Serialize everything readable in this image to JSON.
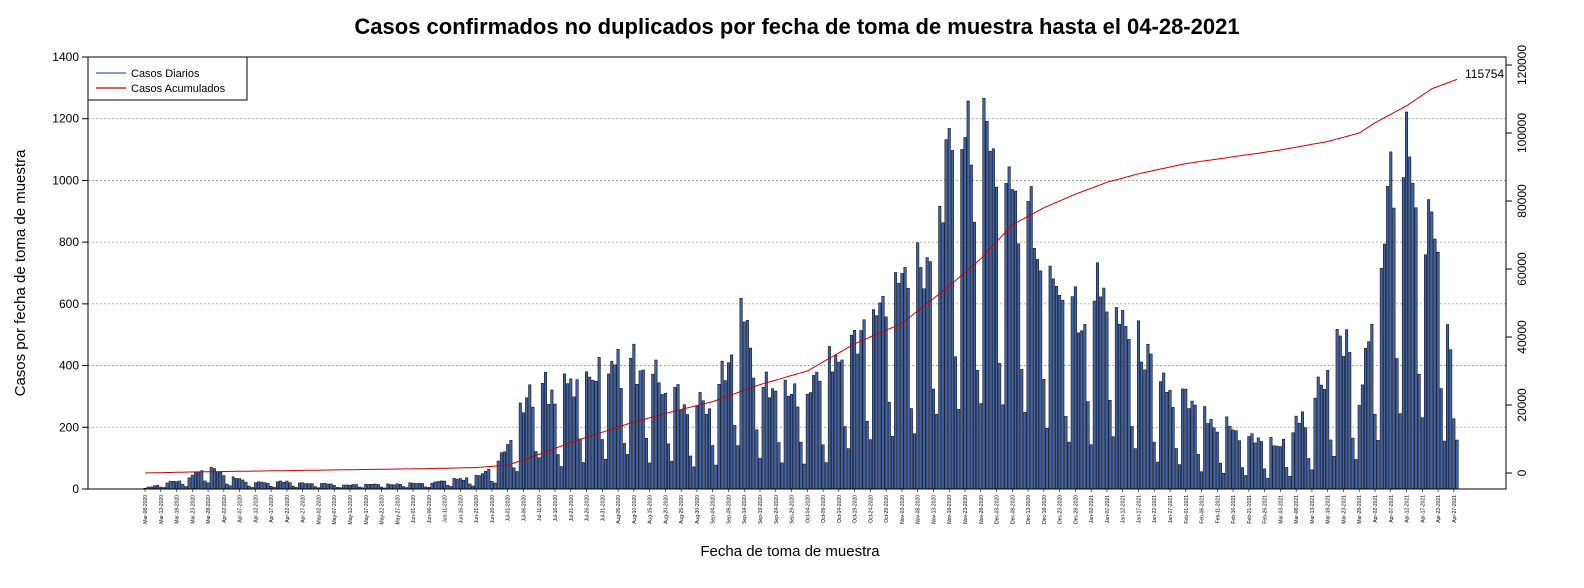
{
  "chart_data": {
    "type": "bar+line",
    "title": "Casos confirmados no duplicados por fecha de toma de muestra hasta el 04-28-2021",
    "xlabel": "Fecha de toma de muestra",
    "ylabel": "Casos por fecha de toma de muestra",
    "ylim_left": [
      0,
      1400
    ],
    "yticks_left": [
      "0",
      "200",
      "400",
      "600",
      "800",
      "1000",
      "1200",
      "1400"
    ],
    "ylim_right": [
      -4000,
      120000
    ],
    "yticks_right": [
      "0",
      "20000",
      "40000",
      "60000",
      "80000",
      "100000",
      "120000"
    ],
    "grid": "horizontal dotted",
    "legend_position": "top-left",
    "legend": [
      "Casos Diarios",
      "Casos Acumulados"
    ],
    "final_cumulative_label": "115754",
    "start_date": "2020-03-08",
    "x_tick_labels": [
      "Mar-08-2020",
      "Mar-13-2020",
      "Mar-18-2020",
      "Mar-23-2020",
      "Mar-28-2020",
      "Apr-02-2020",
      "Apr-07-2020",
      "Apr-12-2020",
      "Apr-17-2020",
      "Apr-22-2020",
      "Apr-27-2020",
      "May-02-2020",
      "May-07-2020",
      "May-12-2020",
      "May-17-2020",
      "May-22-2020",
      "May-27-2020",
      "Jun-01-2020",
      "Jun-06-2020",
      "Jun-11-2020",
      "Jun-16-2020",
      "Jun-21-2020",
      "Jun-26-2020",
      "Jul-01-2020",
      "Jul-06-2020",
      "Jul-11-2020",
      "Jul-16-2020",
      "Jul-21-2020",
      "Jul-26-2020",
      "Jul-31-2020",
      "Aug-05-2020",
      "Aug-10-2020",
      "Aug-15-2020",
      "Aug-20-2020",
      "Aug-25-2020",
      "Aug-30-2020",
      "Sep-04-2020",
      "Sep-09-2020",
      "Sep-14-2020",
      "Sep-19-2020",
      "Sep-24-2020",
      "Sep-29-2020",
      "Oct-04-2020",
      "Oct-09-2020",
      "Oct-14-2020",
      "Oct-19-2020",
      "Oct-24-2020",
      "Oct-29-2020",
      "Nov-03-2020",
      "Nov-08-2020",
      "Nov-13-2020",
      "Nov-18-2020",
      "Nov-23-2020",
      "Nov-28-2020",
      "Dec-03-2020",
      "Dec-08-2020",
      "Dec-13-2020",
      "Dec-18-2020",
      "Dec-23-2020",
      "Dec-28-2020",
      "Jan-02-2021",
      "Jan-07-2021",
      "Jan-12-2021",
      "Jan-17-2021",
      "Jan-22-2021",
      "Jan-27-2021",
      "Feb-01-2021",
      "Feb-06-2021",
      "Feb-11-2021",
      "Feb-16-2021",
      "Feb-21-2021",
      "Feb-26-2021",
      "Mar-03-2021",
      "Mar-08-2021",
      "Mar-13-2021",
      "Mar-18-2021",
      "Mar-23-2021",
      "Mar-28-2021",
      "Apr-02-2021",
      "Apr-07-2021",
      "Apr-12-2021",
      "Apr-17-2021",
      "Apr-22-2021",
      "Apr-27-2021"
    ],
    "series": [
      {
        "name": "Casos Diarios",
        "axis": "left",
        "weekly_pattern": [
          1.0,
          1.0,
          0.95,
          0.95,
          0.9,
          0.4,
          0.25
        ],
        "anchors": [
          [
            0,
            3
          ],
          [
            14,
            40
          ],
          [
            20,
            75
          ],
          [
            26,
            40
          ],
          [
            35,
            20
          ],
          [
            45,
            25
          ],
          [
            60,
            15
          ],
          [
            75,
            15
          ],
          [
            90,
            20
          ],
          [
            105,
            40
          ],
          [
            112,
            80
          ],
          [
            118,
            220
          ],
          [
            125,
            380
          ],
          [
            130,
            300
          ],
          [
            145,
            430
          ],
          [
            155,
            420
          ],
          [
            165,
            350
          ],
          [
            175,
            280
          ],
          [
            182,
            320
          ],
          [
            186,
            550
          ],
          [
            190,
            560
          ],
          [
            196,
            350
          ],
          [
            210,
            330
          ],
          [
            220,
            450
          ],
          [
            230,
            580
          ],
          [
            240,
            700
          ],
          [
            248,
            800
          ],
          [
            255,
            1080
          ],
          [
            260,
            1180
          ],
          [
            264,
            1100
          ],
          [
            270,
            1120
          ],
          [
            276,
            1000
          ],
          [
            280,
            900
          ],
          [
            285,
            800
          ],
          [
            290,
            700
          ],
          [
            295,
            620
          ],
          [
            300,
            640
          ],
          [
            305,
            680
          ],
          [
            310,
            600
          ],
          [
            315,
            480
          ],
          [
            320,
            420
          ],
          [
            325,
            320
          ],
          [
            330,
            290
          ],
          [
            335,
            260
          ],
          [
            340,
            230
          ],
          [
            345,
            200
          ],
          [
            350,
            180
          ],
          [
            355,
            160
          ],
          [
            360,
            150
          ],
          [
            368,
            250
          ],
          [
            375,
            380
          ],
          [
            380,
            520
          ],
          [
            385,
            300
          ],
          [
            390,
            600
          ],
          [
            395,
            1050
          ],
          [
            400,
            1100
          ],
          [
            405,
            900
          ],
          [
            410,
            820
          ],
          [
            413,
            600
          ],
          [
            415,
            250
          ],
          [
            416,
            150
          ]
        ]
      },
      {
        "name": "Casos Acumulados",
        "axis": "right",
        "anchors": [
          [
            0,
            0
          ],
          [
            15,
            300
          ],
          [
            30,
            500
          ],
          [
            60,
            900
          ],
          [
            90,
            1300
          ],
          [
            105,
            1600
          ],
          [
            115,
            2300
          ],
          [
            125,
            5500
          ],
          [
            135,
            9000
          ],
          [
            145,
            12000
          ],
          [
            155,
            15000
          ],
          [
            165,
            17500
          ],
          [
            180,
            21000
          ],
          [
            195,
            26000
          ],
          [
            210,
            30000
          ],
          [
            225,
            38000
          ],
          [
            240,
            44000
          ],
          [
            255,
            55000
          ],
          [
            265,
            63000
          ],
          [
            275,
            73000
          ],
          [
            285,
            78000
          ],
          [
            295,
            82000
          ],
          [
            305,
            85500
          ],
          [
            315,
            88000
          ],
          [
            330,
            91000
          ],
          [
            345,
            93000
          ],
          [
            360,
            95000
          ],
          [
            375,
            97500
          ],
          [
            385,
            100000
          ],
          [
            390,
            103000
          ],
          [
            400,
            108000
          ],
          [
            408,
            113000
          ],
          [
            416,
            115754
          ]
        ]
      }
    ]
  },
  "colors": {
    "bar_fill": "#3F62A8",
    "bar_stroke": "#000000",
    "cumulative_line": "#CC0000",
    "grid": "#9A9A9A"
  }
}
